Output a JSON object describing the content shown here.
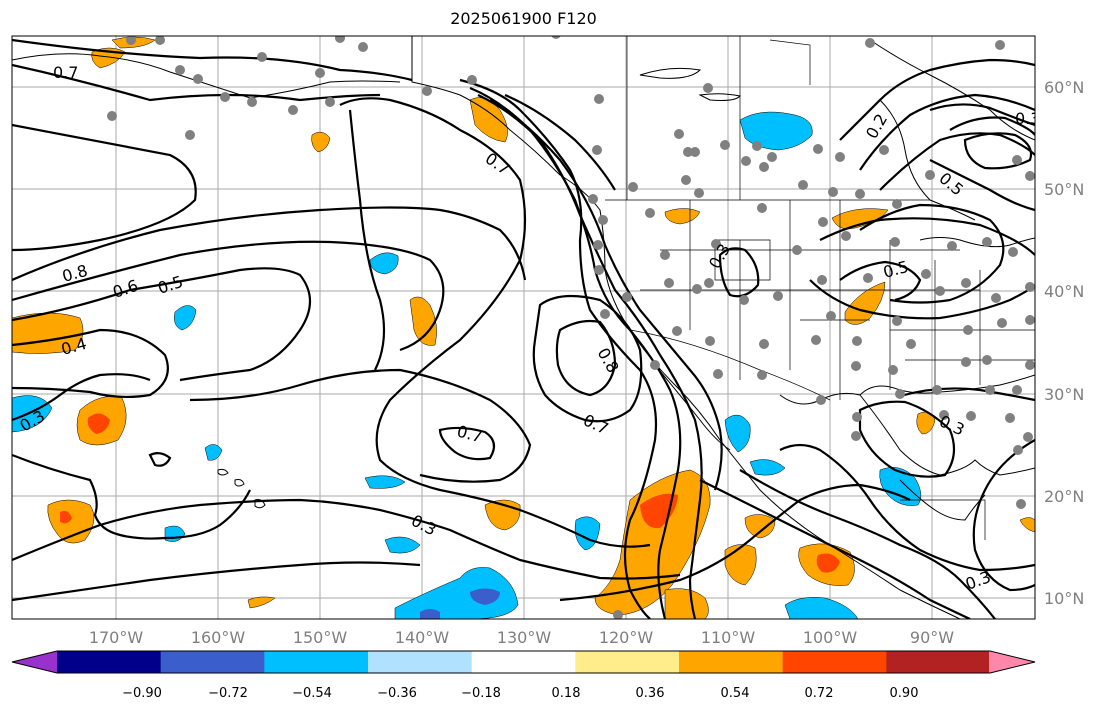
{
  "title": "2025061900 F120",
  "lat_labels": [
    "60°N",
    "50°N",
    "40°N",
    "30°N",
    "20°N",
    "10°N"
  ],
  "lon_labels": [
    "170°W",
    "160°W",
    "150°W",
    "140°W",
    "130°W",
    "120°W",
    "110°W",
    "100°W",
    "90°W"
  ],
  "colorbar": {
    "colors": [
      "#9932cc",
      "#00008b",
      "#3a5fcd",
      "#00bfff",
      "#b0e2ff",
      "#ffffff",
      "#ffec8b",
      "#ffa500",
      "#ff4500",
      "#b22222",
      "#ff88aa"
    ],
    "tick_labels": [
      "−0.90",
      "−0.72",
      "−0.54",
      "−0.36",
      "−0.18",
      "0.18",
      "0.36",
      "0.54",
      "0.72",
      "0.90"
    ]
  },
  "contour_labels": [
    "0.7",
    "0.8",
    "0.6",
    "0.5",
    "0.4",
    "0.3",
    "0.7",
    "0.8",
    "0.7",
    "0.7",
    "0.3",
    "0.3",
    "0.2",
    "0.5",
    "0.5",
    "0.3",
    "0.3",
    "0.3"
  ],
  "colors": {
    "grid": "#aaaaaa",
    "station": "#808080",
    "positive_fill": "#ffa500",
    "strong_positive_fill": "#ff4500",
    "negative_fill": "#00bfff",
    "strong_negative_fill": "#3a5fcd"
  }
}
